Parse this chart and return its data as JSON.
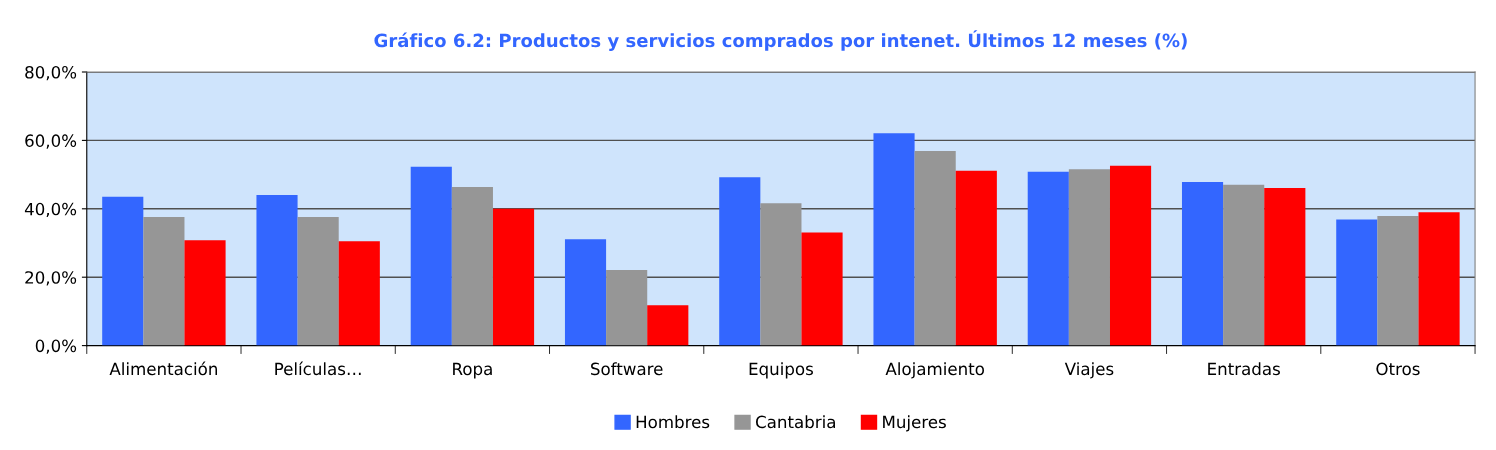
{
  "chart_data": {
    "type": "bar",
    "title": "Gráfico 6.2: Productos y servicios comprados por intenet. Últimos 12 meses (%)",
    "categories": [
      "Alimentación",
      "Películas…",
      "Ropa",
      "Software",
      "Equipos",
      "Alojamiento",
      "Viajes",
      "Entradas",
      "Otros"
    ],
    "series": [
      {
        "name": "Hombres",
        "color": "#3366ff",
        "values": [
          43.5,
          44.0,
          52.3,
          31.1,
          49.2,
          62.1,
          50.8,
          47.8,
          36.9
        ]
      },
      {
        "name": "Cantabria",
        "color": "#969696",
        "values": [
          37.6,
          37.6,
          46.4,
          22.1,
          41.6,
          56.9,
          51.6,
          47.0,
          37.9
        ]
      },
      {
        "name": "Mujeres",
        "color": "#ff0000",
        "values": [
          30.8,
          30.5,
          40.0,
          11.8,
          33.1,
          51.1,
          52.6,
          46.1,
          39.0
        ]
      }
    ],
    "ylim": [
      0,
      80
    ],
    "yticks": [
      {
        "value": 0,
        "label": "0,0%"
      },
      {
        "value": 20,
        "label": "20,0%"
      },
      {
        "value": 40,
        "label": "40,0%"
      },
      {
        "value": 60,
        "label": "60,0%"
      },
      {
        "value": 80,
        "label": "80,0%"
      }
    ],
    "grid": "y",
    "legend": "bottom"
  }
}
